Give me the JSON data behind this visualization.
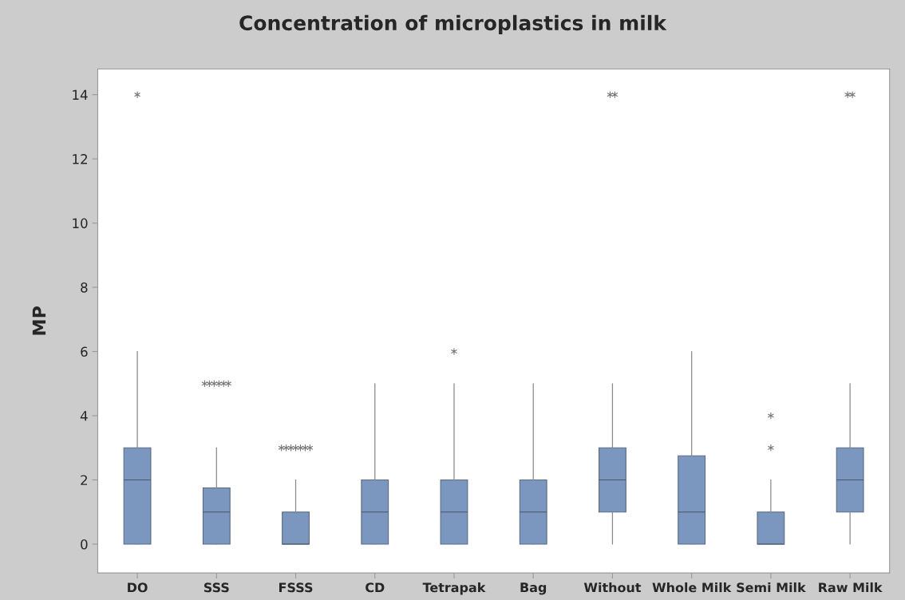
{
  "chart_data": {
    "type": "box",
    "title": "Concentration of microplastics in milk",
    "ylabel": "MP",
    "categories": [
      "DO",
      "SSS",
      "FSSS",
      "CD",
      "Tetrapak",
      "Bag",
      "Without",
      "Whole Milk",
      "Semi Milk",
      "Raw Milk"
    ],
    "color": "#7b96bf",
    "boxes": [
      {
        "low": 0,
        "q1": 0,
        "median": 2,
        "q3": 3,
        "high": 6,
        "outliers": [
          14
        ]
      },
      {
        "low": 0,
        "q1": 0,
        "median": 1,
        "q3": 1.75,
        "high": 3,
        "outliers": [
          5,
          5,
          5,
          5,
          5,
          5
        ]
      },
      {
        "low": 0,
        "q1": 0,
        "median": 0,
        "q3": 1,
        "high": 2,
        "outliers": [
          3,
          3,
          3,
          3,
          3,
          3,
          3
        ]
      },
      {
        "low": 0,
        "q1": 0,
        "median": 1,
        "q3": 2,
        "high": 5
      },
      {
        "low": 0,
        "q1": 0,
        "median": 1,
        "q3": 2,
        "high": 5,
        "outliers": [
          6
        ]
      },
      {
        "low": 0,
        "q1": 0,
        "median": 1,
        "q3": 2,
        "high": 5
      },
      {
        "low": 0,
        "q1": 1,
        "median": 2,
        "q3": 3,
        "high": 5,
        "outliers": [
          14,
          14
        ]
      },
      {
        "low": 0,
        "q1": 0,
        "median": 1,
        "q3": 2.75,
        "high": 6
      },
      {
        "low": 0,
        "q1": 0,
        "median": 0,
        "q3": 1,
        "high": 2,
        "outliers": [
          3,
          4
        ]
      },
      {
        "low": 0,
        "q1": 1,
        "median": 2,
        "q3": 3,
        "high": 5,
        "outliers": [
          14,
          14
        ]
      }
    ],
    "ylim": [
      -0.9,
      14.8
    ],
    "yticks": [
      0,
      2,
      4,
      6,
      8,
      10,
      12,
      14
    ],
    "grid": false,
    "legend": false
  }
}
